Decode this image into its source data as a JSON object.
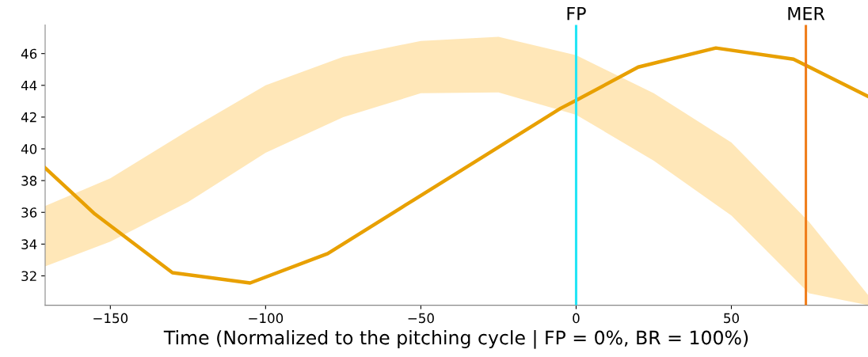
{
  "chart_data": {
    "type": "line",
    "xlabel": "Time (Normalized to the pitching cycle | FP = 0%, BR = 100%)",
    "xlim": [
      -171,
      94
    ],
    "ylim": [
      30.15,
      47.8
    ],
    "xticks": [
      {
        "value": -150,
        "label": "−150"
      },
      {
        "value": -100,
        "label": "−100"
      },
      {
        "value": -50,
        "label": "−50"
      },
      0,
      50
    ],
    "yticks": [
      32,
      34,
      36,
      38,
      40,
      42,
      44,
      46
    ],
    "grid": false,
    "legend": false,
    "marker": "none",
    "line_style": "solid",
    "series": [
      {
        "color": "#ffe4b0",
        "x": [
          -171,
          -150,
          -125,
          -100,
          -75,
          -50,
          -25,
          0,
          25,
          50,
          75,
          94
        ],
        "values": [
          null,
          null,
          null,
          null,
          null,
          null,
          null,
          null,
          null,
          null,
          null,
          null
        ],
        "lower": [
          32.6,
          34.15,
          36.65,
          39.75,
          42,
          43.5,
          43.55,
          42.15,
          39.25,
          35.8,
          30.9,
          30.15
        ],
        "upper": [
          36.4,
          38.15,
          41.15,
          44,
          45.8,
          46.8,
          47.05,
          45.9,
          43.5,
          40.4,
          35.4,
          30.8
        ]
      },
      {
        "color": "#e8a000",
        "x": [
          -171,
          -155,
          -130,
          -105,
          -80,
          -55,
          -30,
          -5,
          0,
          20,
          45,
          70,
          94
        ],
        "values": [
          38.8,
          35.9,
          32.2,
          31.55,
          33.4,
          36.45,
          39.5,
          42.55,
          43.05,
          45.15,
          46.35,
          45.65,
          43.3
        ]
      }
    ],
    "ref_lines": [
      {
        "axis": "x",
        "value": 0,
        "label": "FP",
        "color": "#22e5f5",
        "line_style": "solid"
      },
      {
        "axis": "x",
        "value": 74,
        "label": "MER",
        "color": "#f07d1a",
        "line_style": "solid"
      }
    ]
  }
}
